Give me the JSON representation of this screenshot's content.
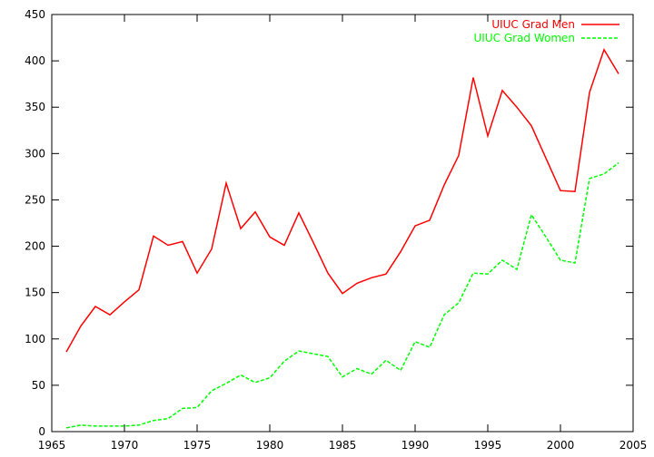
{
  "chart_data": {
    "type": "line",
    "title": "",
    "xlabel": "",
    "ylabel": "",
    "xlim": [
      1965,
      2005
    ],
    "ylim": [
      0,
      450
    ],
    "x_ticks": [
      1965,
      1970,
      1975,
      1980,
      1985,
      1990,
      1995,
      2000,
      2005
    ],
    "y_ticks": [
      0,
      50,
      100,
      150,
      200,
      250,
      300,
      350,
      400,
      450
    ],
    "grid": false,
    "legend_position": "top-right",
    "series": [
      {
        "name": "UIUC Grad Men",
        "color": "#ff0000",
        "style": "solid",
        "x": [
          1966,
          1967,
          1968,
          1969,
          1970,
          1971,
          1972,
          1973,
          1974,
          1975,
          1976,
          1977,
          1978,
          1979,
          1980,
          1981,
          1982,
          1983,
          1984,
          1985,
          1986,
          1987,
          1988,
          1989,
          1990,
          1991,
          1992,
          1993,
          1994,
          1995,
          1996,
          1997,
          1998,
          1999,
          2000,
          2001,
          2002,
          2003,
          2004
        ],
        "y": [
          86,
          114,
          135,
          126,
          140,
          153,
          211,
          201,
          205,
          171,
          197,
          268,
          219,
          237,
          210,
          201,
          236,
          204,
          171,
          149,
          160,
          166,
          170,
          194,
          222,
          228,
          266,
          298,
          382,
          319,
          368,
          350,
          330,
          295,
          260,
          259,
          366,
          412,
          386
        ]
      },
      {
        "name": "UIUC Grad Women",
        "color": "#00ff00",
        "style": "dashed",
        "x": [
          1966,
          1967,
          1968,
          1969,
          1970,
          1971,
          1972,
          1973,
          1974,
          1975,
          1976,
          1977,
          1978,
          1979,
          1980,
          1981,
          1982,
          1983,
          1984,
          1985,
          1986,
          1987,
          1988,
          1989,
          1990,
          1991,
          1992,
          1993,
          1994,
          1995,
          1996,
          1997,
          1998,
          1999,
          2000,
          2001,
          2002,
          2003,
          2004
        ],
        "y": [
          4,
          7,
          6,
          6,
          6,
          7,
          12,
          14,
          25,
          26,
          44,
          52,
          61,
          53,
          58,
          76,
          87,
          84,
          81,
          59,
          68,
          62,
          77,
          66,
          97,
          91,
          126,
          139,
          171,
          170,
          185,
          175,
          234,
          210,
          185,
          182,
          273,
          278,
          290
        ]
      }
    ]
  }
}
